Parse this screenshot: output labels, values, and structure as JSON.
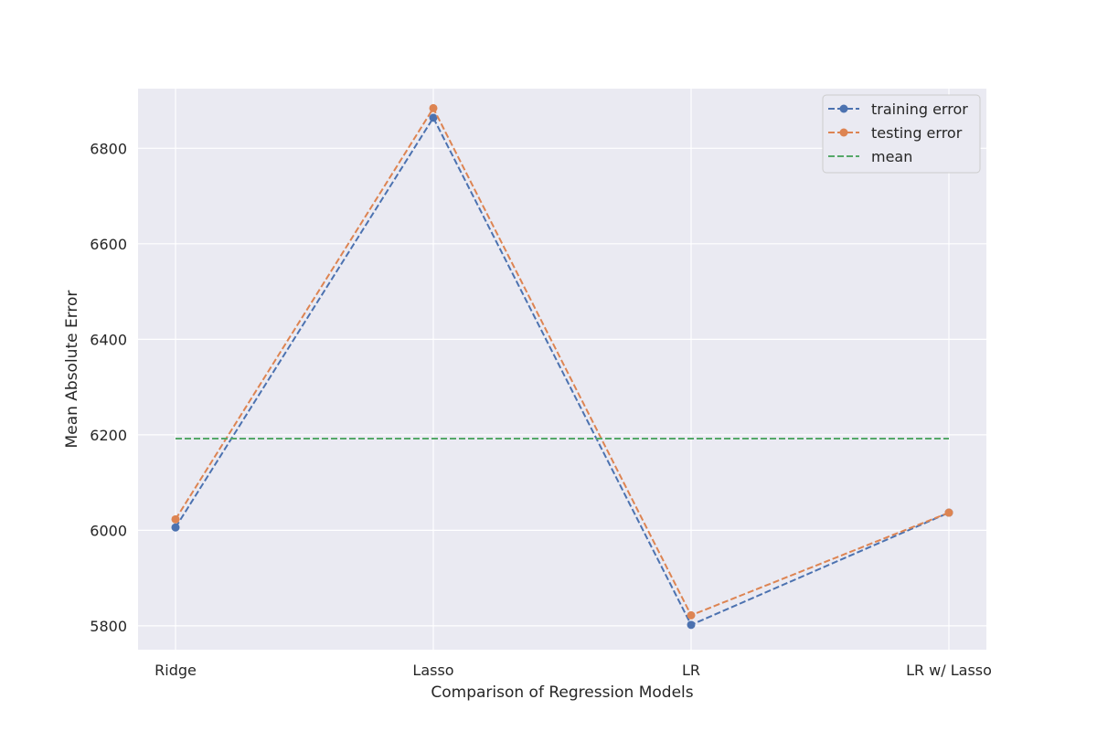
{
  "chart_data": {
    "type": "line",
    "categories": [
      "Ridge",
      "Lasso",
      "LR",
      "LR w/ Lasso"
    ],
    "series": [
      {
        "name": "training error",
        "values": [
          6006,
          6864,
          5802,
          6037
        ],
        "color": "#4c72b0",
        "style": "dashed",
        "marker": "circle"
      },
      {
        "name": "testing error",
        "values": [
          6023,
          6884,
          5822,
          6037
        ],
        "color": "#dd8452",
        "style": "dashed",
        "marker": "circle"
      },
      {
        "name": "mean",
        "values": [
          6192,
          6192,
          6192,
          6192
        ],
        "color": "#55a868",
        "style": "dashed",
        "marker": "none"
      }
    ],
    "title": "",
    "xlabel": "Comparison of Regression Models",
    "ylabel": "Mean Absolute Error",
    "ylim": [
      5750,
      6925
    ],
    "yticks": [
      5800,
      6000,
      6200,
      6400,
      6600,
      6800
    ],
    "grid": true,
    "legend_position": "top-right",
    "colors": {
      "plot_background": "#eaeaf2",
      "grid": "#ffffff",
      "text": "#262626"
    }
  }
}
